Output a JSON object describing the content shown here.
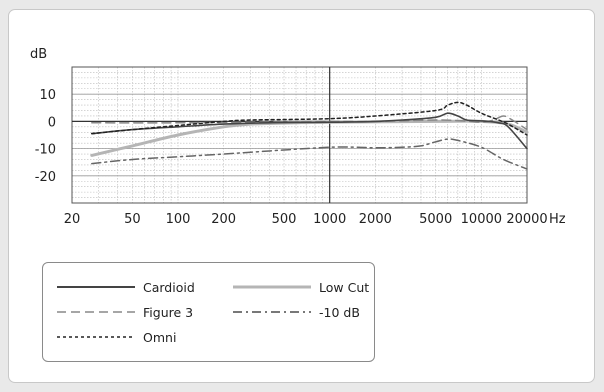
{
  "chart_data": {
    "type": "line",
    "title": "",
    "ylabel": "dB",
    "xlabel": "Hz",
    "x_scale": "log",
    "xlim": [
      20,
      20000
    ],
    "ylim": [
      -30,
      20
    ],
    "y_ticks": [
      10,
      0,
      -10,
      -20
    ],
    "y_tick_labels": [
      "10",
      "0",
      "-10",
      "-20"
    ],
    "x_ticks": [
      20,
      50,
      100,
      200,
      500,
      1000,
      2000,
      5000,
      10000,
      20000
    ],
    "x_tick_labels": [
      "20",
      "50",
      "100",
      "200",
      "500",
      "1000",
      "2000",
      "5000",
      "10000",
      "20000"
    ],
    "grid": true,
    "legend_position": "bottom-left",
    "colors": {
      "axis": "#555555",
      "grid": "#bbbbbb",
      "text": "#222222"
    },
    "series": [
      {
        "name": "Cardioid",
        "style": "solid",
        "color": "#444444",
        "points": [
          [
            27,
            -4.5
          ],
          [
            50,
            -3
          ],
          [
            100,
            -2
          ],
          [
            200,
            -1
          ],
          [
            400,
            -0.5
          ],
          [
            1000,
            -0.3
          ],
          [
            2000,
            0
          ],
          [
            3000,
            0.5
          ],
          [
            5000,
            1.5
          ],
          [
            6000,
            3
          ],
          [
            7000,
            2
          ],
          [
            8000,
            0.5
          ],
          [
            10000,
            0.2
          ],
          [
            13000,
            -0.5
          ],
          [
            15000,
            -2
          ],
          [
            20000,
            -10
          ]
        ]
      },
      {
        "name": "Figure 3",
        "style": "dashed",
        "color": "#888888",
        "points": [
          [
            27,
            -0.5
          ],
          [
            100,
            -0.5
          ],
          [
            300,
            -0.3
          ],
          [
            1000,
            0
          ],
          [
            2000,
            0
          ],
          [
            5000,
            0.5
          ],
          [
            7000,
            0.3
          ],
          [
            10000,
            -0.3
          ],
          [
            12000,
            0.5
          ],
          [
            14000,
            2
          ],
          [
            16000,
            0.5
          ],
          [
            20000,
            -3
          ]
        ]
      },
      {
        "name": "Omni",
        "style": "dotted",
        "color": "#222222",
        "points": [
          [
            27,
            -4.5
          ],
          [
            50,
            -3
          ],
          [
            100,
            -1.5
          ],
          [
            200,
            0
          ],
          [
            300,
            0.5
          ],
          [
            1000,
            1
          ],
          [
            2000,
            2
          ],
          [
            5000,
            4
          ],
          [
            6000,
            6
          ],
          [
            7000,
            7
          ],
          [
            8000,
            6
          ],
          [
            10000,
            3
          ],
          [
            13000,
            0.5
          ],
          [
            15000,
            -1
          ],
          [
            20000,
            -5
          ]
        ]
      },
      {
        "name": "Low Cut",
        "style": "solid",
        "color": "#b5b5b5",
        "points": [
          [
            27,
            -12.5
          ],
          [
            50,
            -9
          ],
          [
            100,
            -5
          ],
          [
            200,
            -2
          ],
          [
            300,
            -1
          ],
          [
            600,
            -0.5
          ],
          [
            1000,
            -0.3
          ],
          [
            5000,
            0
          ],
          [
            10000,
            0
          ],
          [
            15000,
            -1
          ],
          [
            20000,
            -4
          ]
        ]
      },
      {
        "name": "-10 dB",
        "style": "dashdot",
        "color": "#666666",
        "points": [
          [
            27,
            -15.5
          ],
          [
            50,
            -14
          ],
          [
            100,
            -13
          ],
          [
            200,
            -12
          ],
          [
            500,
            -10.5
          ],
          [
            1000,
            -9.5
          ],
          [
            1500,
            -9.5
          ],
          [
            2000,
            -9.7
          ],
          [
            3000,
            -9.5
          ],
          [
            4000,
            -9
          ],
          [
            5000,
            -7.5
          ],
          [
            6000,
            -6.5
          ],
          [
            7000,
            -7
          ],
          [
            10000,
            -9.5
          ],
          [
            14000,
            -14
          ],
          [
            20000,
            -17.5
          ]
        ]
      }
    ]
  },
  "legend": {
    "items": [
      {
        "name": "Cardioid",
        "style": "solid",
        "color": "#444444"
      },
      {
        "name": "Low Cut",
        "style": "solid",
        "color": "#b5b5b5"
      },
      {
        "name": "Figure 3",
        "style": "dashed",
        "color": "#888888"
      },
      {
        "name": "-10 dB",
        "style": "dashdot",
        "color": "#666666"
      },
      {
        "name": "Omni",
        "style": "dotted",
        "color": "#222222"
      }
    ]
  }
}
